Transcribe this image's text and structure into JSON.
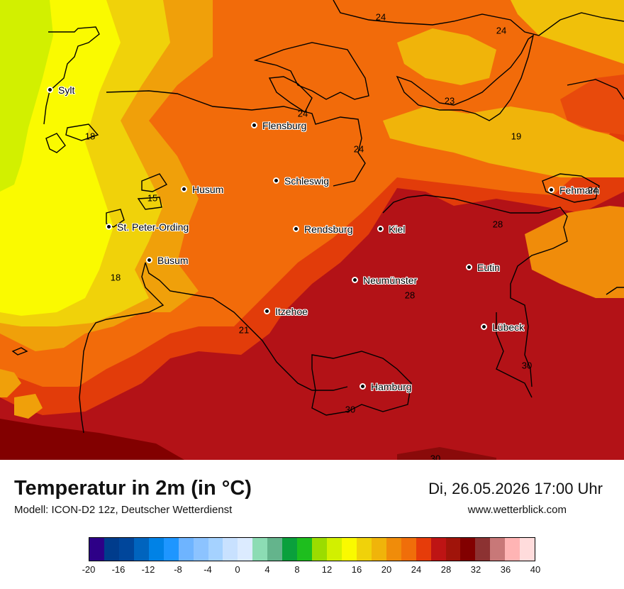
{
  "title": "Temperatur in 2m (in °C)",
  "model": "Modell: ICON-D2 12z, Deutscher Wetterdienst",
  "datetime": "Di, 26.05.2026 17:00 Uhr",
  "website": "www.wetterblick.com",
  "cities": [
    {
      "name": "Sylt"
    },
    {
      "name": "Flensburg"
    },
    {
      "name": "Schleswig"
    },
    {
      "name": "Husum"
    },
    {
      "name": "St. Peter-Ording"
    },
    {
      "name": "Büsum"
    },
    {
      "name": "Rendsburg"
    },
    {
      "name": "Kiel"
    },
    {
      "name": "Neumünster"
    },
    {
      "name": "Eutin"
    },
    {
      "name": "Itzehoe"
    },
    {
      "name": "Lübeck"
    },
    {
      "name": "Hamburg"
    },
    {
      "name": "Fehmarn"
    }
  ],
  "isolines": [
    "24",
    "24",
    "23",
    "24",
    "24",
    "19",
    "18",
    "15",
    "18",
    "28",
    "28",
    "21",
    "30",
    "30",
    "30",
    "24"
  ],
  "legend": {
    "ticks": [
      "-20",
      "-16",
      "-12",
      "-8",
      "-4",
      "0",
      "4",
      "8",
      "12",
      "16",
      "20",
      "24",
      "28",
      "32",
      "36",
      "40"
    ],
    "colors": [
      "#2d0087",
      "#003c8c",
      "#00469b",
      "#0064be",
      "#0082e6",
      "#1e96ff",
      "#6eb4ff",
      "#8cc3ff",
      "#a5d2ff",
      "#c8e1ff",
      "#dcebff",
      "#8cdcb4",
      "#64b48c",
      "#0aa03c",
      "#1ebe1e",
      "#9bdc00",
      "#d2f000",
      "#fafa00",
      "#f0d20a",
      "#f0b40a",
      "#f08c0a",
      "#f06e0a",
      "#e63c0a",
      "#be1414",
      "#a0140a",
      "#820000",
      "#8c3232",
      "#c87878",
      "#ffb4b4",
      "#ffdcdc"
    ]
  }
}
